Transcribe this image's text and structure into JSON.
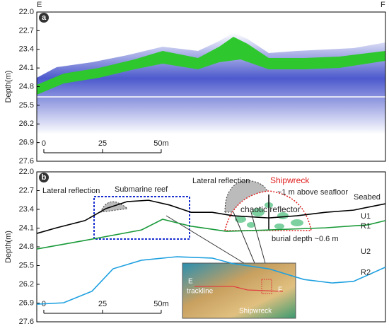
{
  "chart_data": [
    {
      "type": "image",
      "panel_label": "a",
      "left_label": "E",
      "right_label": "F",
      "ylabel": "Depth(m)",
      "ylim": [
        22.0,
        27.6
      ],
      "y_inverted": true,
      "yticks": [
        {
          "value": 22,
          "label": "22.0"
        },
        22.7,
        23.4,
        24.1,
        24.8,
        25.5,
        26.2,
        26.9,
        27.6
      ],
      "xlim": [
        -3,
        145.5
      ],
      "scale_ticks": [
        0,
        25,
        {
          "value": 50,
          "label": "50m"
        }
      ]
    },
    {
      "type": "line",
      "panel_label": "b",
      "ylabel": "Depth(m)",
      "ylim": [
        22.0,
        27.6
      ],
      "y_inverted": true,
      "yticks": [
        {
          "value": 22,
          "label": "22.0"
        },
        22.7,
        23.4,
        24.1,
        24.8,
        25.5,
        26.2,
        26.9,
        27.6
      ],
      "xlim": [
        -3,
        145.5
      ],
      "scale_ticks": [
        0,
        25,
        {
          "value": 50,
          "label": "50m"
        }
      ],
      "series": [
        {
          "name": "Seabed",
          "color": "#000000",
          "x": [
            -3.0,
            5.4,
            17.5,
            26.5,
            35.5,
            44.6,
            53.6,
            62.7,
            71.7,
            80.7,
            95.8,
            107.8,
            119.9,
            131.9,
            145.5
          ],
          "values": [
            24.3,
            24.09,
            23.82,
            23.37,
            23.11,
            23.06,
            23.24,
            23.51,
            23.51,
            23.64,
            23.72,
            23.64,
            23.51,
            23.43,
            23.19
          ]
        },
        {
          "name": "R1",
          "color": "#1a9a3a",
          "x": [
            -3.0,
            17.5,
            41.6,
            50.6,
            62.7,
            77.7,
            95.8,
            119.9,
            138.0,
            145.5
          ],
          "values": [
            24.88,
            24.56,
            24.17,
            23.77,
            24.03,
            24.22,
            24.17,
            24.09,
            23.98,
            23.82
          ]
        },
        {
          "name": "R2",
          "color": "#1ea0e0",
          "x": [
            -3.0,
            8.4,
            20.5,
            29.5,
            41.6,
            56.6,
            71.7,
            80.7,
            95.8,
            110.8,
            122.9,
            131.9,
            145.5
          ],
          "values": [
            26.94,
            26.89,
            26.46,
            25.62,
            25.3,
            25.17,
            25.22,
            25.43,
            25.62,
            26.02,
            26.15,
            26.09,
            25.56
          ]
        }
      ],
      "annotations": [
        "Lateral reflection",
        "Submarine reef",
        "Lateral reflection",
        "Shipwreck",
        "~1 m above seafloor",
        "chaotic reflector",
        "burial depth ~0.6 m",
        "U1",
        "U2",
        "E",
        "F",
        "trackline",
        "Shipwreck"
      ]
    }
  ]
}
